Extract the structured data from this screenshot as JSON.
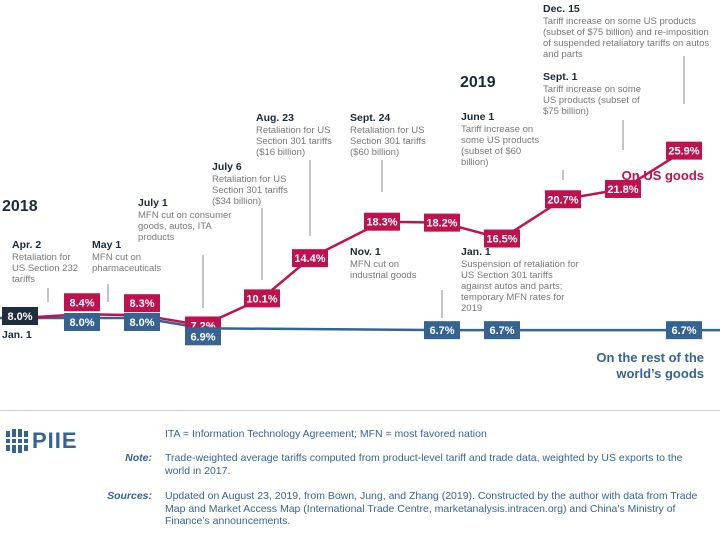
{
  "years": [
    "2018",
    "2019"
  ],
  "annotations": [
    {
      "id": "jan1-2018",
      "date": "Jan. 1",
      "text": ""
    },
    {
      "id": "apr2",
      "date": "Apr. 2",
      "text": "Retaliation for US Section 232 tariffs"
    },
    {
      "id": "may1",
      "date": "May 1",
      "text": "MFN cut on pharmaceuticals"
    },
    {
      "id": "jul1",
      "date": "July 1",
      "text": "MFN cut on consumer goods, autos, ITA products"
    },
    {
      "id": "jul6",
      "date": "July 6",
      "text": "Retaliation for US Section 301 tariffs ($34 billion)"
    },
    {
      "id": "aug23",
      "date": "Aug. 23",
      "text": "Retaliation for US Section 301 tariffs ($16 billion)"
    },
    {
      "id": "sep24",
      "date": "Sept. 24",
      "text": "Retaliation for US Section 301 tariffs ($60 billion)"
    },
    {
      "id": "nov1",
      "date": "Nov. 1",
      "text": "MFN cut on industrial goods"
    },
    {
      "id": "jan1-2019",
      "date": "Jan. 1",
      "text": "Suspension of retaliation for US Section 301 tariffs against autos and parts; temporary MFN rates for 2019"
    },
    {
      "id": "jun1",
      "date": "June 1",
      "text": "Tariff increase on some US products (subset of $60 billion)"
    },
    {
      "id": "sep1",
      "date": "Sept. 1",
      "text": "Tariff increase on some US products (subset of $75 billion)"
    },
    {
      "id": "dec15",
      "date": "Dec. 15",
      "text": "Tariff increase on some US products (subset of $75 billion) and re-imposition of suspended retaliatory tariffs on autos and parts"
    }
  ],
  "series_labels": {
    "us": "On US goods",
    "row": "On the rest of the world’s goods"
  },
  "colors": {
    "us": "#c0114f",
    "row": "#356493",
    "start": "#1f2d3d",
    "annotation_text": "#777777",
    "date_text": "#1a2a3a",
    "leader_line": "#888888"
  },
  "chart_data": {
    "type": "line",
    "unit": "%",
    "events": [
      "Jan. 1 2018",
      "Apr. 2 2018",
      "May 1 2018",
      "July 1 2018",
      "July 6 2018",
      "Aug. 23 2018",
      "Sept. 24 2018",
      "Nov. 1 2018",
      "Jan. 1 2019",
      "June 1 2019",
      "Sept. 1 2019",
      "Dec. 15 2019"
    ],
    "series": [
      {
        "name": "On US goods",
        "points": [
          {
            "event": "Jan. 1 2018",
            "value": 8.0
          },
          {
            "event": "Apr. 2 2018",
            "value": 8.4
          },
          {
            "event": "May 1 2018",
            "value": 8.3
          },
          {
            "event": "July 1 2018",
            "value": 7.2
          },
          {
            "event": "July 6 2018",
            "value": 10.1
          },
          {
            "event": "Aug. 23 2018",
            "value": 14.4
          },
          {
            "event": "Sept. 24 2018",
            "value": 18.3
          },
          {
            "event": "Nov. 1 2018",
            "value": 18.2
          },
          {
            "event": "Jan. 1 2019",
            "value": 16.5
          },
          {
            "event": "June 1 2019",
            "value": 20.7
          },
          {
            "event": "Sept. 1 2019",
            "value": 21.8
          },
          {
            "event": "Dec. 15 2019",
            "value": 25.9
          }
        ]
      },
      {
        "name": "On the rest of the world’s goods",
        "points": [
          {
            "event": "Jan. 1 2018",
            "value": 8.0
          },
          {
            "event": "Apr. 2 2018",
            "value": 8.0
          },
          {
            "event": "May 1 2018",
            "value": 8.0
          },
          {
            "event": "July 1 2018",
            "value": 6.9
          },
          {
            "event": "Nov. 1 2018",
            "value": 6.7
          },
          {
            "event": "Jan. 1 2019",
            "value": 6.7
          },
          {
            "event": "Dec. 15 2019",
            "value": 6.7
          }
        ]
      }
    ]
  },
  "logo": {
    "text": "PIIE"
  },
  "footer": {
    "abbrev": "ITA = Information Technology Agreement; MFN = most favored nation",
    "note_label": "Note:",
    "note": "Trade-weighted average tariffs computed from product-level tariff and trade data, weighted by US exports to the world in 2017.",
    "sources_label": "Sources:",
    "sources": "Updated on August 23, 2019, from Bown, Jung, and Zhang (2019). Constructed by the author with data from Trade Map and Market Access Map (International Trade Centre, marketanalysis.intracen.org) and China’s Ministry of Finance’s announcements."
  }
}
